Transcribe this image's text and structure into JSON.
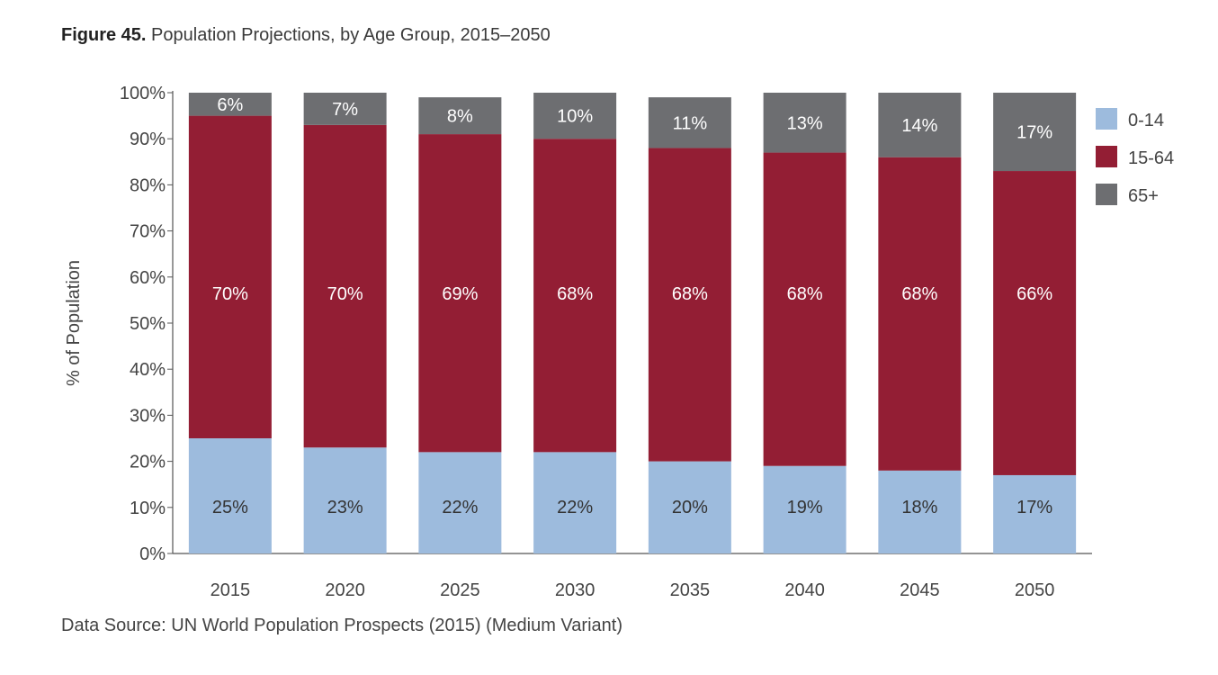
{
  "figure": {
    "number": "Figure 45.",
    "title": "Population Projections, by Age Group, 2015–2050"
  },
  "source": "Data Source: UN World Population Prospects (2015) (Medium Variant)",
  "chart_data": {
    "type": "bar",
    "stacked": true,
    "categories": [
      "2015",
      "2020",
      "2025",
      "2030",
      "2035",
      "2040",
      "2045",
      "2050"
    ],
    "series": [
      {
        "name": "0-14",
        "color": "#9dbbdd",
        "values": [
          25,
          23,
          22,
          22,
          20,
          19,
          18,
          17
        ],
        "labels": [
          "25%",
          "23%",
          "22%",
          "22%",
          "20%",
          "19%",
          "18%",
          "17%"
        ]
      },
      {
        "name": "15-64",
        "color": "#931e34",
        "values": [
          70,
          70,
          69,
          68,
          68,
          68,
          68,
          66
        ],
        "labels": [
          "70%",
          "70%",
          "69%",
          "68%",
          "68%",
          "68%",
          "68%",
          "66%"
        ]
      },
      {
        "name": "65+",
        "color": "#6d6e71",
        "values": [
          6,
          7,
          8,
          10,
          11,
          13,
          14,
          17
        ],
        "labels": [
          "6%",
          "7%",
          "8%",
          "10%",
          "11%",
          "13%",
          "14%",
          "17%"
        ]
      }
    ],
    "ylabel": "% of Population",
    "xlabel": "",
    "ylim": [
      0,
      100
    ],
    "yticks": [
      "0%",
      "10%",
      "20%",
      "30%",
      "40%",
      "50%",
      "60%",
      "70%",
      "80%",
      "90%",
      "100%"
    ],
    "grid": false,
    "legend_position": "right"
  }
}
